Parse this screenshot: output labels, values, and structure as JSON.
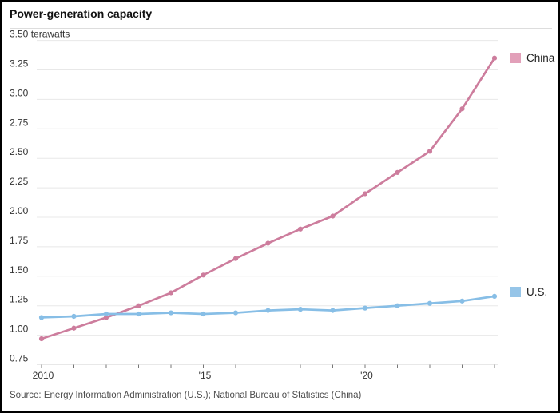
{
  "header": {
    "title": "Power-generation capacity"
  },
  "source_line": "Source: Energy Information Administration (U.S.); National Bureau of Statistics (China)",
  "legend": {
    "china_label": "China",
    "us_label": "U.S."
  },
  "colors": {
    "china_line": "#cd7d9d",
    "china_swatch": "#e2a0b9",
    "us_line": "#87bee6",
    "us_swatch": "#96c5e8",
    "gridline": "#e8e8e8",
    "tick": "#777777",
    "axis_text": "#333333"
  },
  "chart_data": {
    "type": "line",
    "title": "Power-generation capacity",
    "ylabel_unit": "terawatts",
    "x": [
      2010,
      2011,
      2012,
      2013,
      2014,
      2015,
      2016,
      2017,
      2018,
      2019,
      2020,
      2021,
      2022,
      2023,
      2024
    ],
    "series": [
      {
        "name": "China",
        "color": "#cd7d9d",
        "values": [
          0.97,
          1.06,
          1.15,
          1.25,
          1.36,
          1.51,
          1.65,
          1.78,
          1.9,
          2.01,
          2.2,
          2.38,
          2.56,
          2.92,
          3.35
        ]
      },
      {
        "name": "U.S.",
        "color": "#87bee6",
        "values": [
          1.15,
          1.16,
          1.18,
          1.18,
          1.19,
          1.18,
          1.19,
          1.21,
          1.22,
          1.21,
          1.23,
          1.25,
          1.27,
          1.29,
          1.33
        ]
      }
    ],
    "ylim": [
      0.75,
      3.5
    ],
    "ytick_step": 0.25,
    "yticks": [
      {
        "v": 0.75,
        "label": "0.75"
      },
      {
        "v": 1.0,
        "label": "1.00"
      },
      {
        "v": 1.25,
        "label": "1.25"
      },
      {
        "v": 1.5,
        "label": "1.50"
      },
      {
        "v": 1.75,
        "label": "1.75"
      },
      {
        "v": 2.0,
        "label": "2.00"
      },
      {
        "v": 2.25,
        "label": "2.25"
      },
      {
        "v": 2.5,
        "label": "2.50"
      },
      {
        "v": 2.75,
        "label": "2.75"
      },
      {
        "v": 3.0,
        "label": "3.00"
      },
      {
        "v": 3.25,
        "label": "3.25"
      },
      {
        "v": 3.5,
        "label": "3.50 terawatts"
      }
    ],
    "xticks_labeled": [
      {
        "year": 2010,
        "label": "2010"
      },
      {
        "year": 2015,
        "label": "'15"
      },
      {
        "year": 2020,
        "label": "'20"
      }
    ],
    "grid": true,
    "legend_position": "right",
    "markers": true
  }
}
